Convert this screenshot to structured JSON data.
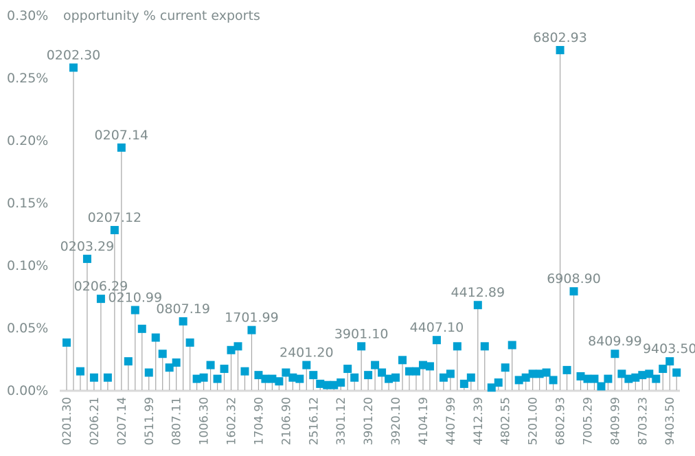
{
  "chart_data": {
    "type": "scatter",
    "style": "lollipop",
    "title": "opportunity % current exports",
    "xlabel": "",
    "ylabel": "",
    "ylim": [
      0,
      0.3
    ],
    "yticks": [
      "0.00%",
      "0.05%",
      "0.10%",
      "0.15%",
      "0.20%",
      "0.25%",
      "0.30%"
    ],
    "ytick_values": [
      0,
      0.05,
      0.1,
      0.15,
      0.2,
      0.25,
      0.3
    ],
    "grid": false,
    "marker_color": "#00a0d2",
    "stem_color": "#a6a6a6",
    "x_tick_labels": [
      "0201.30",
      "0206.21",
      "0207.14",
      "0511.99",
      "0807.11",
      "1006.30",
      "1602.32",
      "1704.90",
      "2106.90",
      "2516.12",
      "3301.12",
      "3901.20",
      "3920.10",
      "4104.19",
      "4407.99",
      "4412.39",
      "4802.55",
      "5201.00",
      "6802.93",
      "7005.29",
      "8409.99",
      "8703.23",
      "9403.50"
    ],
    "x_tick_every": 4,
    "values": [
      0.038,
      0.258,
      0.015,
      0.105,
      0.01,
      0.073,
      0.01,
      0.128,
      0.194,
      0.023,
      0.064,
      0.049,
      0.014,
      0.042,
      0.029,
      0.018,
      0.022,
      0.055,
      0.038,
      0.009,
      0.01,
      0.02,
      0.009,
      0.017,
      0.032,
      0.035,
      0.015,
      0.048,
      0.012,
      0.009,
      0.009,
      0.007,
      0.014,
      0.01,
      0.009,
      0.02,
      0.012,
      0.005,
      0.004,
      0.004,
      0.006,
      0.017,
      0.01,
      0.035,
      0.012,
      0.02,
      0.014,
      0.009,
      0.01,
      0.024,
      0.015,
      0.015,
      0.02,
      0.019,
      0.04,
      0.01,
      0.013,
      0.035,
      0.005,
      0.01,
      0.068,
      0.035,
      0.002,
      0.006,
      0.018,
      0.036,
      0.008,
      0.01,
      0.013,
      0.013,
      0.014,
      0.008,
      0.272,
      0.016,
      0.079,
      0.011,
      0.009,
      0.009,
      0.003,
      0.009,
      0.029,
      0.013,
      0.009,
      0.01,
      0.012,
      0.013,
      0.009,
      0.017,
      0.023,
      0.014
    ],
    "annotations": [
      {
        "index": 1,
        "label": "0202.30"
      },
      {
        "index": 3,
        "label": "0203.29"
      },
      {
        "index": 5,
        "label": "0206.29"
      },
      {
        "index": 7,
        "label": "0207.12"
      },
      {
        "index": 8,
        "label": "0207.14"
      },
      {
        "index": 10,
        "label": "0210.99"
      },
      {
        "index": 17,
        "label": "0807.19"
      },
      {
        "index": 27,
        "label": "1701.99"
      },
      {
        "index": 35,
        "label": "2401.20"
      },
      {
        "index": 43,
        "label": "3901.10"
      },
      {
        "index": 54,
        "label": "4407.10"
      },
      {
        "index": 60,
        "label": "4412.89"
      },
      {
        "index": 72,
        "label": "6802.93"
      },
      {
        "index": 74,
        "label": "6908.90"
      },
      {
        "index": 80,
        "label": "8409.99"
      },
      {
        "index": 88,
        "label": "9403.50"
      }
    ]
  }
}
